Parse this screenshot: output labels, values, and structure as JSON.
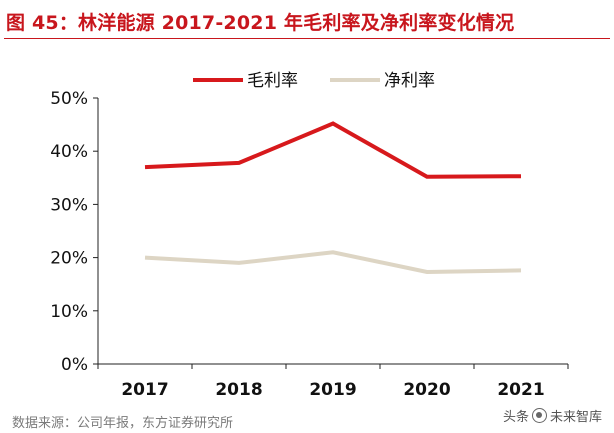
{
  "figure": {
    "title": "图 45：林洋能源 2017-2021 年毛利率及净利率变化情况",
    "source": "数据来源：公司年报，东方证券研究所",
    "watermark_prefix": "头条",
    "watermark_suffix": "未来智库"
  },
  "colors": {
    "title": "#c8161d",
    "gross_margin": "#d7191c",
    "net_margin": "#ddd5c4",
    "axis": "#222222",
    "source_text": "#7a7a7a"
  },
  "chart_data": {
    "type": "line",
    "categories": [
      "2017",
      "2018",
      "2019",
      "2020",
      "2021"
    ],
    "series": [
      {
        "name": "毛利率",
        "values": [
          0.37,
          0.378,
          0.452,
          0.352,
          0.353
        ]
      },
      {
        "name": "净利率",
        "values": [
          0.2,
          0.19,
          0.21,
          0.173,
          0.176
        ]
      }
    ],
    "yticks": [
      "0%",
      "10%",
      "20%",
      "30%",
      "40%",
      "50%"
    ],
    "ylim": [
      0,
      0.5
    ],
    "grid": false,
    "legend_position": "top"
  }
}
